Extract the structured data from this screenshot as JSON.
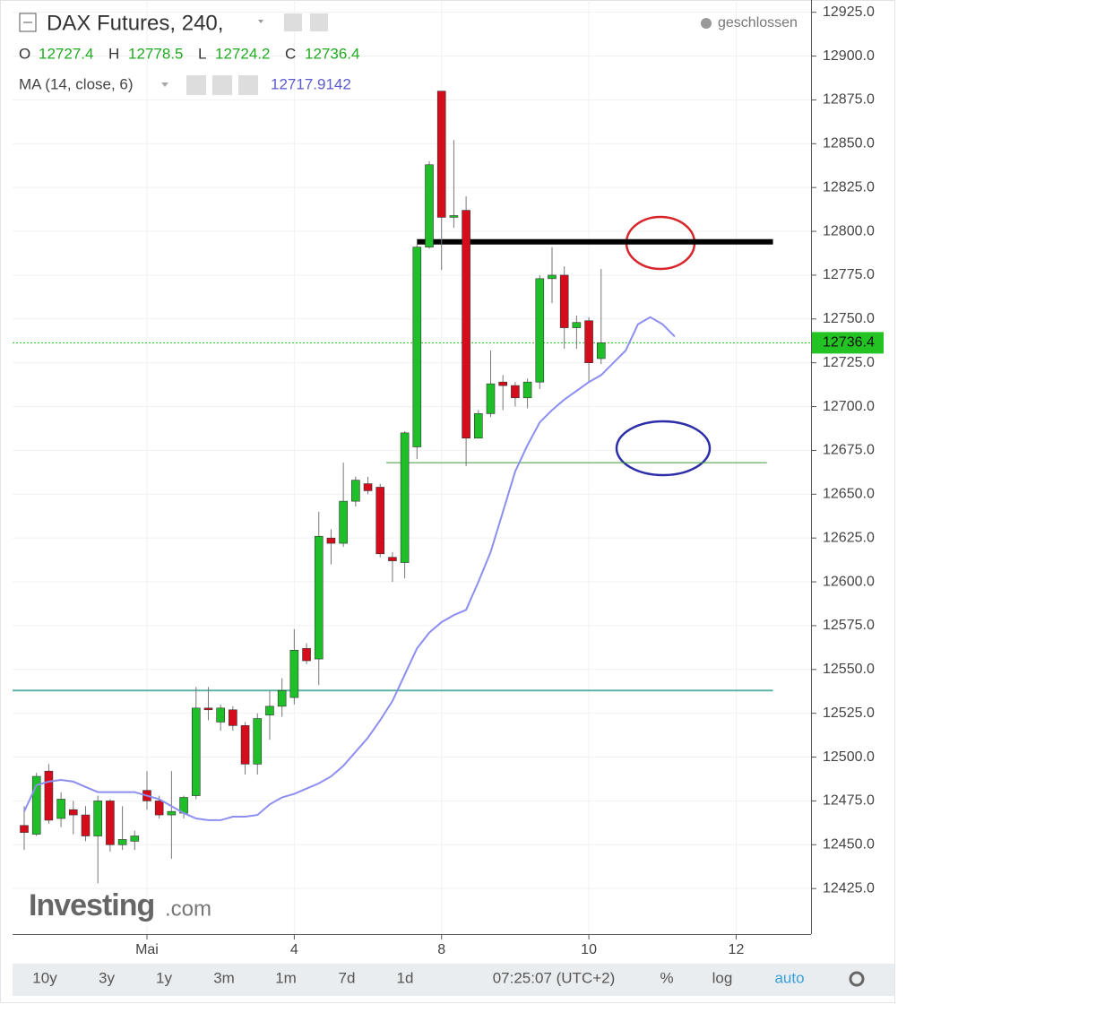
{
  "header": {
    "title": "DAX Futures, 240,",
    "status": "geschlossen",
    "ohlc": [
      {
        "label": "O",
        "value": "12727.4"
      },
      {
        "label": "H",
        "value": "12778.5"
      },
      {
        "label": "L",
        "value": "12724.2"
      },
      {
        "label": "C",
        "value": "12736.4"
      }
    ],
    "indicator": {
      "label": "MA (14, close, 6)",
      "value": "12717.9142"
    }
  },
  "logo": {
    "brand": "Investing",
    "suffix": ".com"
  },
  "toolbar": [
    "10y",
    "3y",
    "1y",
    "3m",
    "1m",
    "7d",
    "1d",
    "07:25:07 (UTC+2)",
    "%",
    "log",
    "auto"
  ],
  "chart_data": {
    "type": "candlestick",
    "up_color": "#1fbf2a",
    "down_color": "#d40c1c",
    "candles": [
      {
        "open": 12461,
        "high": 12472,
        "low": 12447,
        "close": 12457
      },
      {
        "open": 12456,
        "high": 12491,
        "low": 12455,
        "close": 12489
      },
      {
        "open": 12492,
        "high": 12496,
        "low": 12462,
        "close": 12464
      },
      {
        "open": 12465,
        "high": 12480,
        "low": 12460,
        "close": 12476
      },
      {
        "open": 12470,
        "high": 12475,
        "low": 12456,
        "close": 12467
      },
      {
        "open": 12467,
        "high": 12472,
        "low": 12452,
        "close": 12455
      },
      {
        "open": 12455,
        "high": 12478,
        "low": 12428,
        "close": 12475
      },
      {
        "open": 12475,
        "high": 12476,
        "low": 12446,
        "close": 12450
      },
      {
        "open": 12450,
        "high": 12472,
        "low": 12447,
        "close": 12453
      },
      {
        "open": 12452,
        "high": 12458,
        "low": 12447,
        "close": 12455
      },
      {
        "open": 12481,
        "high": 12492,
        "low": 12470,
        "close": 12475
      },
      {
        "open": 12475,
        "high": 12478,
        "low": 12465,
        "close": 12467
      },
      {
        "open": 12467,
        "high": 12492,
        "low": 12442,
        "close": 12469
      },
      {
        "open": 12468,
        "high": 12478,
        "low": 12465,
        "close": 12477
      },
      {
        "open": 12478,
        "high": 12540,
        "low": 12476,
        "close": 12528
      },
      {
        "open": 12528,
        "high": 12540,
        "low": 12521,
        "close": 12527
      },
      {
        "open": 12520,
        "high": 12530,
        "low": 12515,
        "close": 12528
      },
      {
        "open": 12527,
        "high": 12529,
        "low": 12515,
        "close": 12518
      },
      {
        "open": 12518,
        "high": 12520,
        "low": 12490,
        "close": 12496
      },
      {
        "open": 12496,
        "high": 12525,
        "low": 12490,
        "close": 12522
      },
      {
        "open": 12524,
        "high": 12538,
        "low": 12510,
        "close": 12529
      },
      {
        "open": 12529,
        "high": 12545,
        "low": 12523,
        "close": 12538
      },
      {
        "open": 12534,
        "high": 12573,
        "low": 12530,
        "close": 12561
      },
      {
        "open": 12562,
        "high": 12565,
        "low": 12553,
        "close": 12555
      },
      {
        "open": 12556,
        "high": 12640,
        "low": 12541,
        "close": 12626
      },
      {
        "open": 12625,
        "high": 12630,
        "low": 12610,
        "close": 12622
      },
      {
        "open": 12622,
        "high": 12668,
        "low": 12620,
        "close": 12646
      },
      {
        "open": 12646,
        "high": 12660,
        "low": 12643,
        "close": 12658
      },
      {
        "open": 12656,
        "high": 12660,
        "low": 12650,
        "close": 12652
      },
      {
        "open": 12654,
        "high": 12656,
        "low": 12614,
        "close": 12616
      },
      {
        "open": 12614,
        "high": 12617,
        "low": 12600,
        "close": 12612
      },
      {
        "open": 12611,
        "high": 12686,
        "low": 12602,
        "close": 12685
      },
      {
        "open": 12677,
        "high": 12793,
        "low": 12670,
        "close": 12791
      },
      {
        "open": 12791,
        "high": 12840,
        "low": 12790,
        "close": 12838
      },
      {
        "open": 12880,
        "high": 12880,
        "low": 12778,
        "close": 12808
      },
      {
        "open": 12808,
        "high": 12852,
        "low": 12802,
        "close": 12809
      },
      {
        "open": 12812,
        "high": 12820,
        "low": 12666,
        "close": 12682
      },
      {
        "open": 12682,
        "high": 12698,
        "low": 12682,
        "close": 12696
      },
      {
        "open": 12696,
        "high": 12732,
        "low": 12694,
        "close": 12713
      },
      {
        "open": 12714,
        "high": 12718,
        "low": 12698,
        "close": 12712
      },
      {
        "open": 12712,
        "high": 12714,
        "low": 12700,
        "close": 12705
      },
      {
        "open": 12705,
        "high": 12716,
        "low": 12699,
        "close": 12714
      },
      {
        "open": 12714,
        "high": 12775,
        "low": 12710,
        "close": 12773
      },
      {
        "open": 12773,
        "high": 12791,
        "low": 12759,
        "close": 12775
      },
      {
        "open": 12775,
        "high": 12780,
        "low": 12733,
        "close": 12745
      },
      {
        "open": 12745,
        "high": 12752,
        "low": 12733,
        "close": 12748
      },
      {
        "open": 12749,
        "high": 12751,
        "low": 12714,
        "close": 12725
      },
      {
        "open": 12727.4,
        "high": 12778.5,
        "low": 12724.2,
        "close": 12736.4
      }
    ],
    "series": [
      {
        "name": "MA (14, close, 6)",
        "color": "#8d8ff0",
        "values": [
          12469,
          12484,
          12486,
          12487,
          12486,
          12483,
          12480,
          12480,
          12480,
          12480,
          12478,
          12476,
          12472,
          12468,
          12465,
          12464,
          12464,
          12466,
          12466,
          12467,
          12473,
          12477,
          12479,
          12482,
          12485,
          12489,
          12495,
          12503,
          12511,
          12521,
          12532,
          12547,
          12562,
          12571,
          12577,
          12581,
          12584,
          12600,
          12617,
          12640,
          12663,
          12678,
          12691,
          12698,
          12704,
          12709,
          12714,
          12718,
          12725,
          12732,
          12747,
          12751,
          12747,
          12740
        ]
      }
    ],
    "levels": [
      {
        "value": 12794,
        "color": "#000000"
      },
      {
        "value": 12668,
        "color": "#3a9a3a"
      },
      {
        "value": 12538,
        "color": "#5fb3a6"
      }
    ],
    "last_price": 12736.4,
    "xlim": [
      -0.95,
      64.1
    ],
    "xticks": [
      {
        "value": 10,
        "label": "Mai"
      },
      {
        "value": 22,
        "label": "4"
      },
      {
        "value": 34,
        "label": "8"
      },
      {
        "value": 46,
        "label": "10"
      },
      {
        "value": 58,
        "label": "12"
      }
    ],
    "ylim": [
      12399,
      12932
    ],
    "yticks": [
      {
        "value": 12425,
        "label": "12425.0"
      },
      {
        "value": 12450,
        "label": "12450.0"
      },
      {
        "value": 12475,
        "label": "12475.0"
      },
      {
        "value": 12500,
        "label": "12500.0"
      },
      {
        "value": 12525,
        "label": "12525.0"
      },
      {
        "value": 12550,
        "label": "12550.0"
      },
      {
        "value": 12575,
        "label": "12575.0"
      },
      {
        "value": 12600,
        "label": "12600.0"
      },
      {
        "value": 12625,
        "label": "12625.0"
      },
      {
        "value": 12650,
        "label": "12650.0"
      },
      {
        "value": 12675,
        "label": "12675.0"
      },
      {
        "value": 12700,
        "label": "12700.0"
      },
      {
        "value": 12725,
        "label": "12725.0"
      },
      {
        "value": 12750,
        "label": "12750.0"
      },
      {
        "value": 12775,
        "label": "12775.0"
      },
      {
        "value": 12800,
        "label": "12800.0"
      },
      {
        "value": 12825,
        "label": "12825.0"
      },
      {
        "value": 12850,
        "label": "12850.0"
      },
      {
        "value": 12875,
        "label": "12875.0"
      },
      {
        "value": 12900,
        "label": "12900.0"
      },
      {
        "value": 12925,
        "label": "12925.0"
      }
    ],
    "grid": true
  }
}
